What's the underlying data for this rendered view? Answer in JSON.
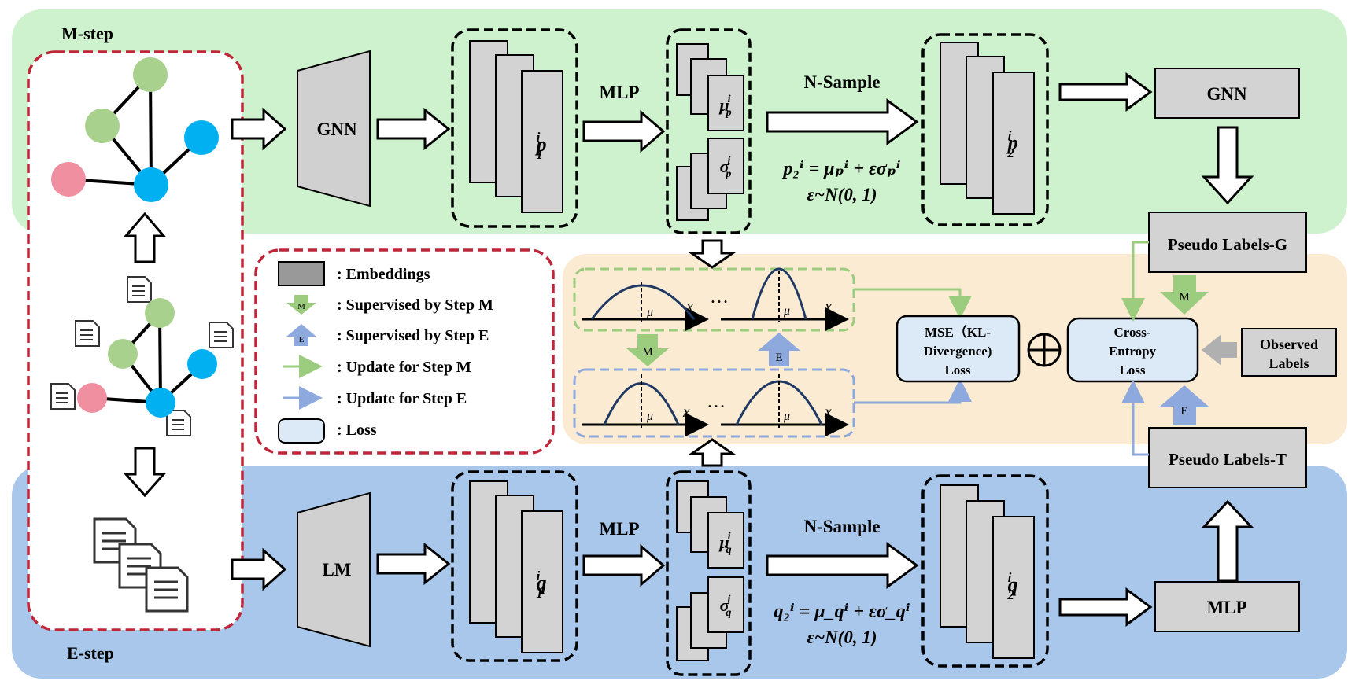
{
  "steps": {
    "m": "M-step",
    "e": "E-step"
  },
  "models": {
    "gnn": "GNN",
    "lm": "LM",
    "gnn2": "GNN",
    "mlp": "MLP"
  },
  "arrows": {
    "mlp_top": "MLP",
    "mlp_bottom": "MLP",
    "nsample_top": "N-Sample",
    "nsample_bottom": "N-Sample",
    "m": "M",
    "e": "E"
  },
  "embeddings": {
    "p1_base": "p",
    "p1_sub": "1",
    "p1_sup": "i",
    "p2_base": "p",
    "p2_sub": "2",
    "p2_sup": "i",
    "q1_base": "q",
    "q1_sub": "1",
    "q1_sup": "i",
    "q2_base": "q",
    "q2_sub": "2",
    "q2_sup": "i",
    "mu": "μ",
    "sigma": "σ",
    "p": "p",
    "q": "q",
    "i": "i"
  },
  "formulas": {
    "top": "p₂ⁱ = μₚⁱ + εσₚⁱ",
    "bottom": "q₂ⁱ = μ_qⁱ + εσ_qⁱ",
    "noise": "ε~N(0, 1)"
  },
  "legend": {
    "embeddings": ": Embeddings",
    "sup_m": ": Supervised by Step M",
    "sup_e": ": Supervised by Step E",
    "upd_m": ": Update for Step M",
    "upd_e": ": Update for Step E",
    "loss": ": Loss"
  },
  "plots": {
    "mu": "μ",
    "x": "x",
    "dots": "…"
  },
  "losses": {
    "mse": [
      "MSE（KL-",
      "Divergence)",
      "Loss"
    ],
    "ce": [
      "Cross-",
      "Entropy",
      "Loss"
    ]
  },
  "labels": {
    "pseudo_g": "Pseudo Labels-G",
    "pseudo_t": "Pseudo Labels-T",
    "observed": [
      "Observed",
      "Labels"
    ]
  },
  "colors": {
    "m_bg": "#cdf2cd",
    "e_bg": "#a8c7ea",
    "mid_bg": "#fbebd2",
    "embed": "#d3d3d3",
    "loss": "#dce9f7",
    "green_arrow": "#9ccc7e",
    "blue_arrow": "#8ea9dd",
    "red_dash": "#c0263a",
    "node_green": "#a9d18e",
    "node_blue": "#00b0f0",
    "node_pink": "#ef8fa0"
  }
}
